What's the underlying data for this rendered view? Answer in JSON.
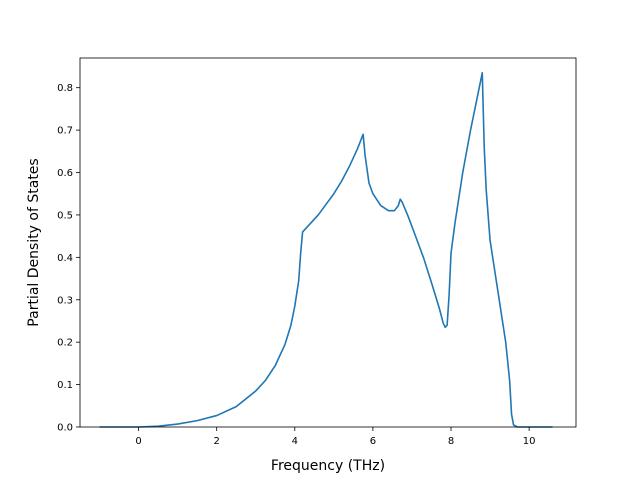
{
  "chart_data": {
    "type": "line",
    "title": "",
    "xlabel": "Frequency (THz)",
    "ylabel": "Partial Density of States",
    "xlim": [
      -1.5,
      11.2
    ],
    "ylim": [
      0,
      0.87
    ],
    "xticks": [
      0,
      2,
      4,
      6,
      8,
      10
    ],
    "xtick_labels": [
      "0",
      "2",
      "4",
      "6",
      "8",
      "10"
    ],
    "yticks": [
      0.0,
      0.1,
      0.2,
      0.3,
      0.4,
      0.5,
      0.6,
      0.7,
      0.8
    ],
    "ytick_labels": [
      "0.0",
      "0.1",
      "0.2",
      "0.3",
      "0.4",
      "0.5",
      "0.6",
      "0.7",
      "0.8"
    ],
    "grid": false,
    "series": [
      {
        "color": "#1f77b4",
        "x": [
          -1.0,
          0.0,
          0.5,
          1.0,
          1.5,
          2.0,
          2.5,
          3.0,
          3.25,
          3.5,
          3.75,
          3.9,
          4.0,
          4.1,
          4.15,
          4.2,
          4.4,
          4.6,
          4.8,
          5.0,
          5.2,
          5.4,
          5.6,
          5.75,
          5.8,
          5.9,
          6.0,
          6.2,
          6.4,
          6.55,
          6.65,
          6.7,
          6.75,
          6.9,
          7.1,
          7.3,
          7.5,
          7.7,
          7.8,
          7.85,
          7.9,
          7.95,
          8.0,
          8.1,
          8.3,
          8.5,
          8.7,
          8.8,
          8.85,
          8.9,
          9.0,
          9.2,
          9.4,
          9.5,
          9.55,
          9.6,
          9.7,
          10.0,
          10.6
        ],
        "y": [
          0.0,
          0.0,
          0.002,
          0.007,
          0.015,
          0.027,
          0.048,
          0.085,
          0.11,
          0.145,
          0.195,
          0.24,
          0.285,
          0.345,
          0.41,
          0.46,
          0.48,
          0.5,
          0.525,
          0.55,
          0.58,
          0.615,
          0.655,
          0.69,
          0.64,
          0.575,
          0.55,
          0.522,
          0.51,
          0.51,
          0.522,
          0.537,
          0.53,
          0.497,
          0.448,
          0.398,
          0.34,
          0.28,
          0.245,
          0.235,
          0.24,
          0.31,
          0.41,
          0.48,
          0.6,
          0.7,
          0.79,
          0.835,
          0.66,
          0.56,
          0.44,
          0.32,
          0.2,
          0.11,
          0.03,
          0.005,
          0.0,
          0.0,
          0.0
        ]
      }
    ]
  }
}
